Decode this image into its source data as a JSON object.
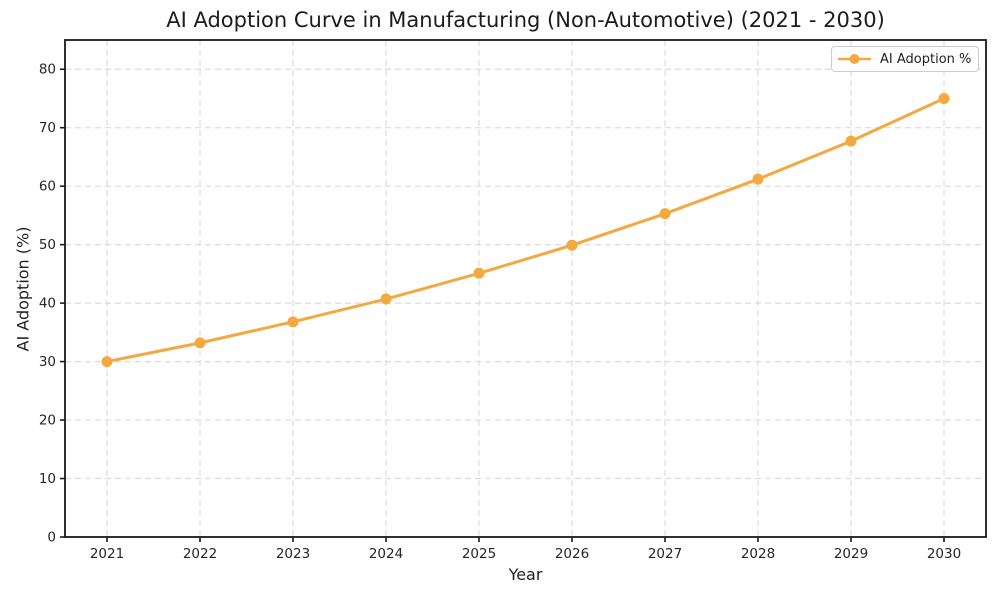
{
  "chart_data": {
    "type": "line",
    "title": "AI Adoption Curve in Manufacturing (Non-Automotive) (2021 - 2030)",
    "xlabel": "Year",
    "ylabel": "AI Adoption (%)",
    "categories": [
      "2021",
      "2022",
      "2023",
      "2024",
      "2025",
      "2026",
      "2027",
      "2028",
      "2029",
      "2030"
    ],
    "series": [
      {
        "name": "AI Adoption %",
        "values": [
          30.0,
          33.2,
          36.8,
          40.7,
          45.1,
          49.9,
          55.3,
          61.2,
          67.7,
          75.0
        ]
      }
    ],
    "ylim": [
      0,
      85
    ],
    "yticks": [
      0,
      10,
      20,
      30,
      40,
      50,
      60,
      70,
      80
    ],
    "grid": true,
    "grid_style": "dashed",
    "legend_position": "upper-right",
    "colors": {
      "line": "#F3A93F",
      "marker": "#F3A93F",
      "grid": "#DBDBDB",
      "axis": "#1A1A1A",
      "text": "#262626",
      "legend_border": "#CCCCCC",
      "background": "#FFFFFF"
    }
  }
}
